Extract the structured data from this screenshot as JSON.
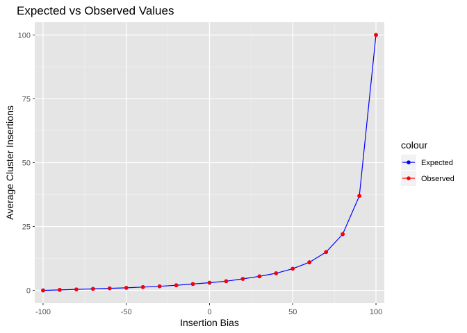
{
  "chart_data": {
    "type": "line",
    "title": "Expected vs Observed Values",
    "xlabel": "Insertion Bias",
    "ylabel": "Average Cluster Insertions",
    "xlim": [
      -105,
      105
    ],
    "ylim": [
      -5,
      105
    ],
    "x_ticks": [
      -100,
      -50,
      0,
      50,
      100
    ],
    "y_ticks": [
      0,
      25,
      50,
      75,
      100
    ],
    "x_tick_labels": [
      "-100",
      "-50",
      "0",
      "50",
      "100"
    ],
    "y_tick_labels": [
      "0",
      "25",
      "50",
      "75",
      "100"
    ],
    "grid": true,
    "legend_position": "right",
    "legend_title": "colour",
    "x": [
      -100,
      -90,
      -80,
      -70,
      -60,
      -50,
      -40,
      -30,
      -20,
      -10,
      0,
      10,
      20,
      30,
      40,
      50,
      60,
      70,
      80,
      90,
      100
    ],
    "series": [
      {
        "name": "Expected",
        "color": "#0000ff",
        "values": [
          0.0,
          0.2,
          0.4,
          0.6,
          0.8,
          1.0,
          1.3,
          1.6,
          2.0,
          2.5,
          3.0,
          3.6,
          4.5,
          5.5,
          6.7,
          8.5,
          11.0,
          15.0,
          22.0,
          37.0,
          100.0
        ]
      },
      {
        "name": "Observed",
        "color": "#ff0000",
        "values": [
          0.0,
          0.2,
          0.4,
          0.6,
          0.8,
          1.0,
          1.3,
          1.6,
          2.0,
          2.5,
          3.0,
          3.6,
          4.5,
          5.5,
          6.7,
          8.5,
          11.0,
          15.0,
          22.0,
          37.0,
          100.0
        ]
      }
    ]
  }
}
